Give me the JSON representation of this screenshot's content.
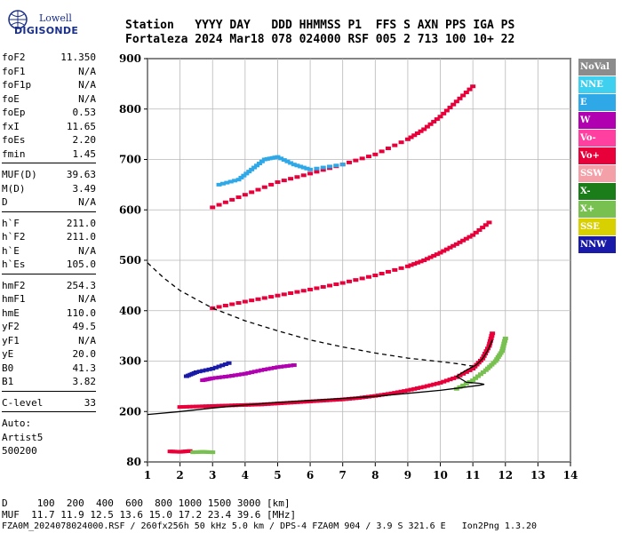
{
  "logo": {
    "brand": "Lowell",
    "name": "DIGISONDE"
  },
  "header": {
    "line1": "Station   YYYY DAY   DDD HHMMSS P1  FFS S AXN PPS IGA PS",
    "line2": "Fortaleza 2024 Mar18 078 024000 RSF 005 2 713 100 10+ 22"
  },
  "params": {
    "group1": [
      {
        "name": "foF2",
        "value": "11.350"
      },
      {
        "name": "foF1",
        "value": "N/A"
      },
      {
        "name": "foF1p",
        "value": "N/A"
      },
      {
        "name": "foE",
        "value": "N/A"
      },
      {
        "name": "foEp",
        "value": "0.53"
      },
      {
        "name": "fxI",
        "value": "11.65"
      },
      {
        "name": "foEs",
        "value": "2.20"
      },
      {
        "name": "fmin",
        "value": "1.45"
      }
    ],
    "group2": [
      {
        "name": "MUF(D)",
        "value": "39.63"
      },
      {
        "name": "M(D)",
        "value": "3.49"
      },
      {
        "name": "D",
        "value": "N/A"
      }
    ],
    "group3": [
      {
        "name": "h`F",
        "value": "211.0"
      },
      {
        "name": "h`F2",
        "value": "211.0"
      },
      {
        "name": "h`E",
        "value": "N/A"
      },
      {
        "name": "h`Es",
        "value": "105.0"
      }
    ],
    "group4": [
      {
        "name": "hmF2",
        "value": "254.3"
      },
      {
        "name": "hmF1",
        "value": "N/A"
      },
      {
        "name": "hmE",
        "value": "110.0"
      },
      {
        "name": "yF2",
        "value": "49.5"
      },
      {
        "name": "yF1",
        "value": "N/A"
      },
      {
        "name": "yE",
        "value": "20.0"
      },
      {
        "name": "B0",
        "value": "41.3"
      },
      {
        "name": "B1",
        "value": "3.82"
      }
    ],
    "group5": [
      {
        "name": "C-level",
        "value": "33"
      }
    ],
    "auto": [
      "Auto:",
      "Artist5",
      "500200"
    ]
  },
  "legend": [
    {
      "label": "NoVal",
      "color": "#8c8c8c"
    },
    {
      "label": "NNE",
      "color": "#3fd0f0"
    },
    {
      "label": "E",
      "color": "#2fa8e8"
    },
    {
      "label": "W",
      "color": "#b000b0"
    },
    {
      "label": "Vo-",
      "color": "#ff40a0"
    },
    {
      "label": "Vo+",
      "color": "#e8003a"
    },
    {
      "label": "SSW",
      "color": "#f4a0a8"
    },
    {
      "label": "X-",
      "color": "#1a7d1a"
    },
    {
      "label": "X+",
      "color": "#78c050"
    },
    {
      "label": "SSE",
      "color": "#d8d000"
    },
    {
      "label": "NNW",
      "color": "#1a1aa8"
    }
  ],
  "footer": {
    "line1": "D     100  200  400  600  800 1000 1500 3000 [km]",
    "line2": "MUF  11.7 11.9 12.5 13.6 15.0 17.2 23.4 39.6 [MHz]",
    "line3": "FZA0M_2024078024000.RSF / 260fx256h 50 kHz 5.0 km / DPS-4 FZA0M 904 / 3.9 S 321.6 E   Ion2Png 1.3.20"
  },
  "chart_data": {
    "type": "scatter",
    "title": "",
    "xlabel": "",
    "ylabel": "",
    "xlim": [
      1,
      14
    ],
    "ylim": [
      80,
      900
    ],
    "xticks": [
      1,
      2,
      3,
      4,
      5,
      6,
      7,
      8,
      9,
      10,
      11,
      12,
      13,
      14
    ],
    "yticks": [
      80,
      200,
      300,
      400,
      500,
      600,
      700,
      800,
      900
    ],
    "grid": true,
    "traces": [
      {
        "name": "Vo+",
        "color": "#e8003a",
        "points": [
          [
            2.0,
            209
          ],
          [
            2.5,
            210
          ],
          [
            3.0,
            211
          ],
          [
            3.5,
            212
          ],
          [
            4.0,
            213
          ],
          [
            4.5,
            214
          ],
          [
            5.0,
            216
          ],
          [
            5.5,
            218
          ],
          [
            6.0,
            220
          ],
          [
            6.5,
            222
          ],
          [
            7.0,
            224
          ],
          [
            7.5,
            227
          ],
          [
            8.0,
            231
          ],
          [
            8.5,
            236
          ],
          [
            9.0,
            242
          ],
          [
            9.5,
            249
          ],
          [
            10.0,
            257
          ],
          [
            10.5,
            268
          ],
          [
            11.0,
            285
          ],
          [
            11.3,
            305
          ],
          [
            11.5,
            330
          ],
          [
            11.6,
            355
          ]
        ]
      },
      {
        "name": "X+",
        "color": "#78c050",
        "points": [
          [
            10.5,
            245
          ],
          [
            11.0,
            262
          ],
          [
            11.4,
            282
          ],
          [
            11.7,
            300
          ],
          [
            11.9,
            320
          ],
          [
            12.0,
            345
          ]
        ]
      },
      {
        "name": "Vo+ (2nd hop)",
        "color": "#e8003a",
        "points": [
          [
            3.0,
            405
          ],
          [
            4.0,
            418
          ],
          [
            5.0,
            430
          ],
          [
            6.0,
            442
          ],
          [
            7.0,
            455
          ],
          [
            8.0,
            470
          ],
          [
            9.0,
            488
          ],
          [
            9.5,
            500
          ],
          [
            10.0,
            515
          ],
          [
            10.5,
            532
          ],
          [
            11.0,
            550
          ],
          [
            11.5,
            575
          ]
        ]
      },
      {
        "name": "Vo+ (3rd hop)",
        "color": "#e8003a",
        "points": [
          [
            3.0,
            605
          ],
          [
            4.0,
            630
          ],
          [
            5.0,
            655
          ],
          [
            6.0,
            672
          ],
          [
            7.0,
            690
          ],
          [
            8.0,
            710
          ],
          [
            9.0,
            740
          ],
          [
            9.5,
            760
          ],
          [
            10.0,
            785
          ],
          [
            10.5,
            815
          ],
          [
            11.0,
            845
          ]
        ]
      },
      {
        "name": "W",
        "color": "#b000b0",
        "points": [
          [
            2.7,
            262
          ],
          [
            3.0,
            266
          ],
          [
            3.5,
            270
          ],
          [
            4.0,
            275
          ],
          [
            4.5,
            282
          ],
          [
            5.0,
            288
          ],
          [
            5.5,
            292
          ]
        ]
      },
      {
        "name": "NNW",
        "color": "#1a1aa8",
        "points": [
          [
            2.2,
            270
          ],
          [
            2.5,
            278
          ],
          [
            3.0,
            285
          ],
          [
            3.5,
            296
          ]
        ]
      },
      {
        "name": "E",
        "color": "#2fa8e8",
        "points": [
          [
            3.2,
            650
          ],
          [
            3.8,
            660
          ],
          [
            4.2,
            680
          ],
          [
            4.6,
            700
          ],
          [
            5.0,
            705
          ],
          [
            5.5,
            690
          ],
          [
            6.0,
            680
          ],
          [
            7.0,
            690
          ]
        ]
      },
      {
        "name": "Vo+ (Es)",
        "color": "#e8003a",
        "points": [
          [
            1.7,
            105
          ],
          [
            2.0,
            104
          ],
          [
            2.3,
            106
          ]
        ]
      },
      {
        "name": "X+ (Es)",
        "color": "#78c050",
        "points": [
          [
            2.4,
            103
          ],
          [
            2.7,
            104
          ],
          [
            3.0,
            103
          ]
        ]
      }
    ],
    "curves": [
      {
        "style": "solid",
        "points": [
          [
            1.0,
            193
          ],
          [
            2.0,
            200
          ],
          [
            3.0,
            207
          ],
          [
            4.0,
            213
          ],
          [
            5.0,
            218
          ],
          [
            6.0,
            222
          ],
          [
            7.0,
            226
          ],
          [
            8.0,
            230
          ],
          [
            9.0,
            236
          ],
          [
            10.0,
            242
          ],
          [
            10.6,
            247
          ],
          [
            11.2,
            252
          ],
          [
            11.35,
            254
          ],
          [
            11.2,
            256
          ],
          [
            10.8,
            258
          ],
          [
            10.5,
            270
          ],
          [
            10.8,
            282
          ],
          [
            11.1,
            292
          ],
          [
            11.3,
            305
          ],
          [
            11.45,
            320
          ],
          [
            11.55,
            335
          ],
          [
            11.6,
            342
          ]
        ]
      },
      {
        "style": "dashed",
        "points": [
          [
            1.0,
            495
          ],
          [
            1.5,
            465
          ],
          [
            2.0,
            440
          ],
          [
            3.0,
            405
          ],
          [
            4.0,
            380
          ],
          [
            5.0,
            360
          ],
          [
            6.0,
            342
          ],
          [
            7.0,
            328
          ],
          [
            8.0,
            316
          ],
          [
            9.0,
            306
          ],
          [
            10.0,
            299
          ],
          [
            10.5,
            295
          ],
          [
            11.0,
            290
          ]
        ]
      }
    ]
  }
}
